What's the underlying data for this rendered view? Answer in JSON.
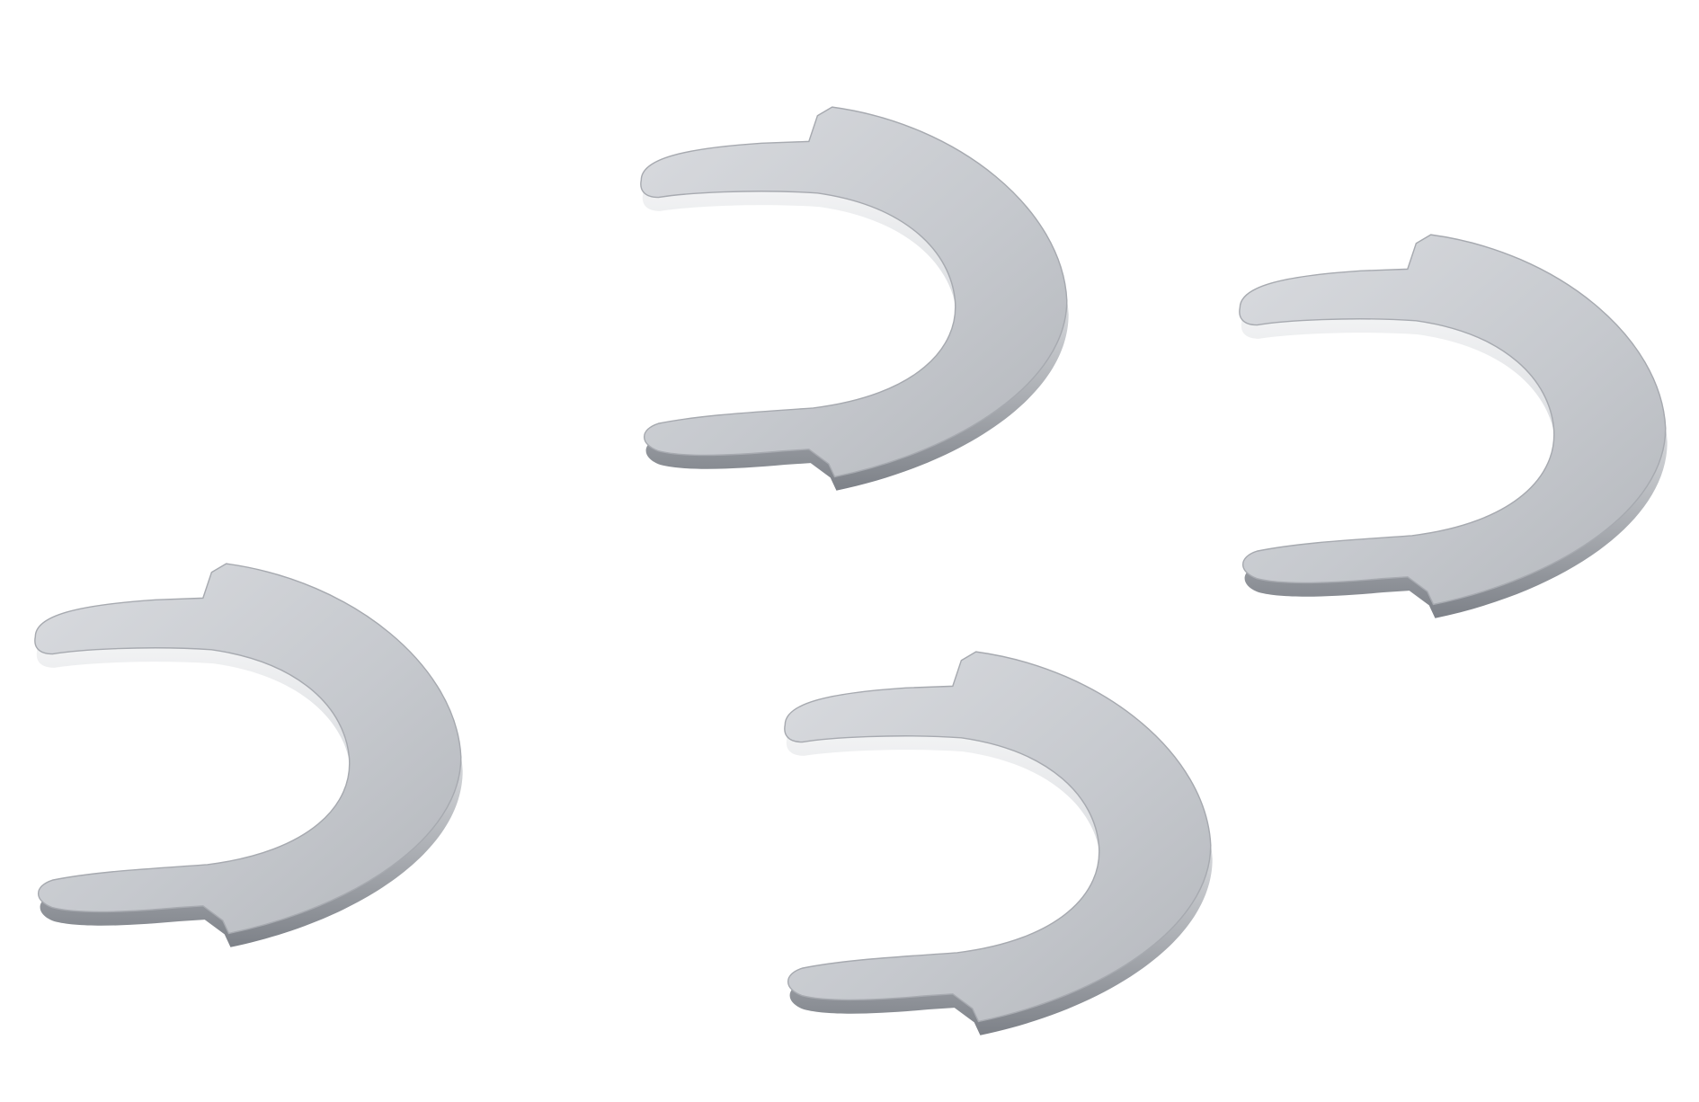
{
  "scene": {
    "background_color": "#ffffff",
    "object_name": "clip-washer",
    "object_count": 4,
    "material_colors": {
      "face_light": "#cfd1d5",
      "face_mid": "#b9bcc1",
      "edge_light": "#f4f5f7",
      "edge_dark": "#6e7278",
      "rim_highlight": "#ffffff"
    }
  }
}
